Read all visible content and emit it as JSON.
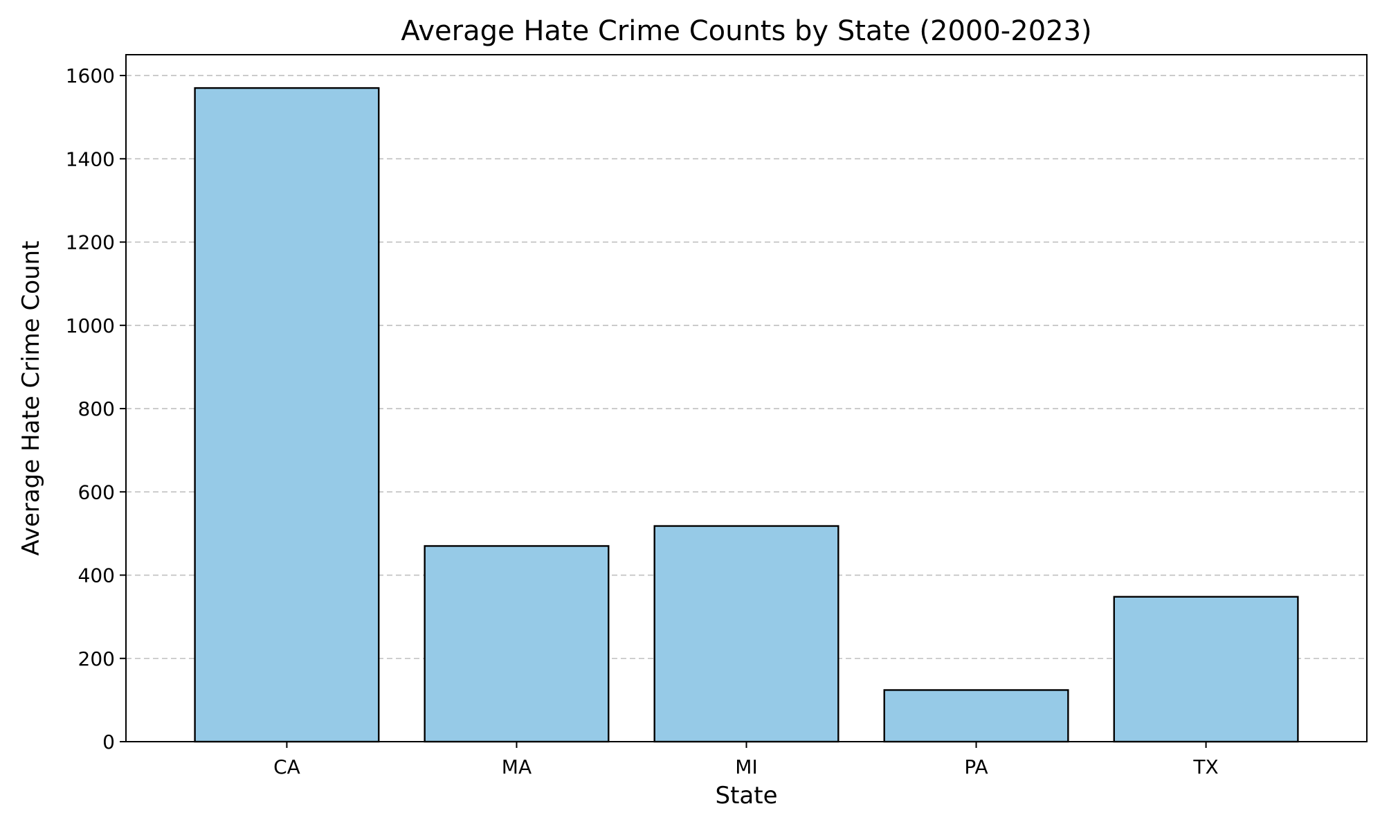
{
  "chart_data": {
    "type": "bar",
    "title": "Average Hate Crime Counts by State (2000-2023)",
    "xlabel": "State",
    "ylabel": "Average Hate Crime Count",
    "categories": [
      "CA",
      "MA",
      "MI",
      "PA",
      "TX"
    ],
    "values": [
      1570,
      470,
      518,
      124,
      348
    ],
    "ylim": [
      0,
      1650
    ],
    "yticks": [
      0,
      200,
      400,
      600,
      800,
      1000,
      1200,
      1400,
      1600
    ],
    "grid": "y-dashed",
    "legend": "none",
    "bar_color": "#96cae7",
    "bar_edge_color": "#000000"
  }
}
